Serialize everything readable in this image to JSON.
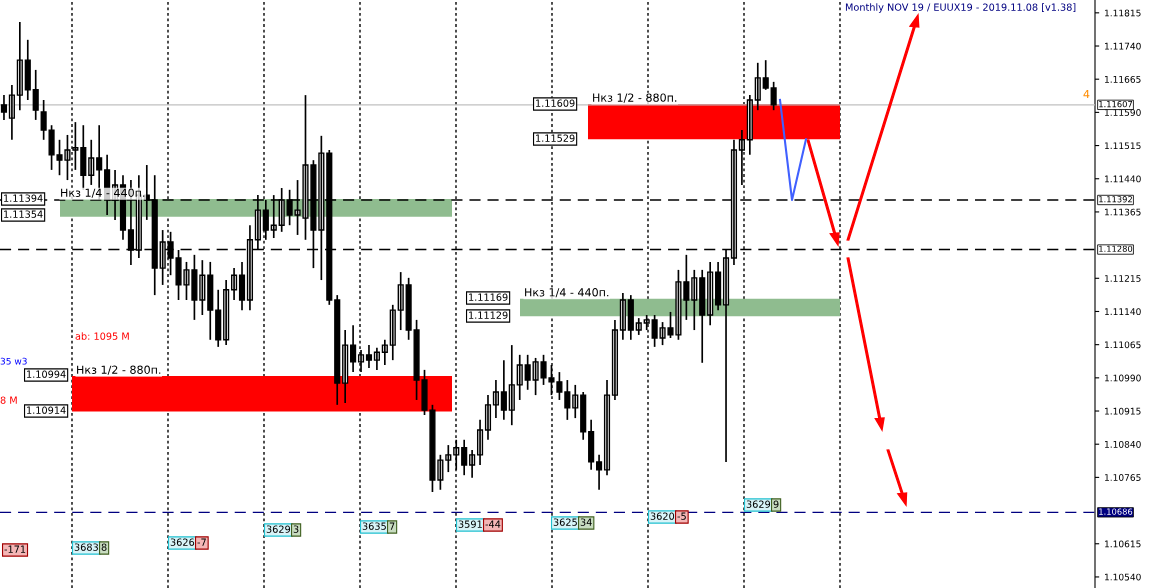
{
  "chart_data": {
    "type": "candlestick",
    "categories": [
      null,
      null,
      null,
      null,
      null,
      null,
      null,
      null,
      null,
      null,
      null,
      null,
      null,
      null,
      null,
      null,
      null,
      null,
      null,
      null,
      null,
      null,
      null,
      null,
      null,
      null,
      null,
      null,
      null,
      null,
      null,
      null,
      null,
      null,
      null,
      null,
      null,
      null,
      null,
      null,
      null,
      null,
      null,
      null,
      null,
      null,
      null,
      null,
      null,
      null,
      null,
      null,
      null,
      null,
      null,
      null,
      null,
      null,
      null,
      null,
      null,
      null,
      null,
      null,
      null,
      null,
      null,
      null,
      null,
      null,
      null,
      null,
      null,
      null,
      null,
      null,
      null,
      null,
      null,
      null,
      null,
      null,
      null,
      null,
      null,
      null,
      null,
      null,
      null,
      null,
      null,
      null,
      null,
      null,
      null,
      null,
      null,
      null,
      null,
      null,
      null,
      null,
      null,
      null,
      null,
      null,
      null,
      null,
      null,
      null,
      null,
      null,
      null,
      null,
      null,
      null,
      null,
      null,
      null,
      null,
      null,
      null,
      null,
      null,
      null,
      null,
      null,
      null,
      null,
      null,
      null,
      null,
      null,
      null,
      null,
      null,
      null,
      null
    ],
    "ohlc": [
      [
        1.11607,
        1.11629,
        1.11573,
        1.11591
      ],
      [
        1.11577,
        1.11652,
        1.11528,
        1.11629
      ],
      [
        1.11629,
        1.11794,
        1.11595,
        1.11708
      ],
      [
        1.11708,
        1.11754,
        1.11618,
        1.11641
      ],
      [
        1.11641,
        1.11686,
        1.11573,
        1.11595
      ],
      [
        1.11591,
        1.11618,
        1.11528,
        1.1155
      ],
      [
        1.1155,
        1.11561,
        1.1146,
        1.11494
      ],
      [
        1.11494,
        1.11528,
        1.11448,
        1.11482
      ],
      [
        1.11482,
        1.11539,
        1.11437,
        1.11505
      ],
      [
        1.11505,
        1.11568,
        1.1146,
        1.1151
      ],
      [
        1.1151,
        1.11561,
        1.11415,
        1.11448
      ],
      [
        1.11448,
        1.11528,
        1.11426,
        1.11487
      ],
      [
        1.11487,
        1.11561,
        1.11392,
        1.1146
      ],
      [
        1.1146,
        1.11494,
        1.11358,
        1.11392
      ],
      [
        1.11392,
        1.1146,
        1.11347,
        1.11426
      ],
      [
        1.11426,
        1.11448,
        1.11302,
        1.11324
      ],
      [
        1.11324,
        1.11437,
        1.11245,
        1.11279
      ],
      [
        1.11279,
        1.11448,
        1.11261,
        1.11403
      ],
      [
        1.11403,
        1.11471,
        1.11347,
        1.11392
      ],
      [
        1.11392,
        1.11448,
        1.11177,
        1.11238
      ],
      [
        1.11238,
        1.11324,
        1.112,
        1.11297
      ],
      [
        1.11297,
        1.1132,
        1.11222,
        1.11261
      ],
      [
        1.11261,
        1.11279,
        1.11166,
        1.112
      ],
      [
        1.112,
        1.11252,
        1.11166,
        1.11234
      ],
      [
        1.11234,
        1.11268,
        1.11121,
        1.11166
      ],
      [
        1.11166,
        1.11256,
        1.11132,
        1.11222
      ],
      [
        1.11222,
        1.11252,
        1.11076,
        1.11143
      ],
      [
        1.11143,
        1.11189,
        1.1106,
        1.11076
      ],
      [
        1.11076,
        1.11211,
        1.11064,
        1.11189
      ],
      [
        1.11189,
        1.11238,
        1.11166,
        1.11222
      ],
      [
        1.11222,
        1.11252,
        1.11143,
        1.11166
      ],
      [
        1.11166,
        1.11335,
        1.11143,
        1.11302
      ],
      [
        1.11302,
        1.11403,
        1.11279,
        1.11369
      ],
      [
        1.11369,
        1.11392,
        1.11302,
        1.11324
      ],
      [
        1.11324,
        1.11403,
        1.11306,
        1.11335
      ],
      [
        1.11335,
        1.11419,
        1.1132,
        1.11392
      ],
      [
        1.11392,
        1.11415,
        1.11335,
        1.11358
      ],
      [
        1.11358,
        1.11437,
        1.11313,
        1.11369
      ],
      [
        1.11351,
        1.11629,
        1.11302,
        1.11471
      ],
      [
        1.11471,
        1.11482,
        1.11238,
        1.11324
      ],
      [
        1.11324,
        1.11537,
        1.11211,
        1.11498
      ],
      [
        1.11498,
        1.11505,
        1.11155,
        1.11166
      ],
      [
        1.11166,
        1.11177,
        1.10929,
        1.10978
      ],
      [
        1.10978,
        1.11098,
        1.10933,
        1.11064
      ],
      [
        1.11064,
        1.11109,
        1.11003,
        1.11026
      ],
      [
        1.11026,
        1.11053,
        1.11003,
        1.11042
      ],
      [
        1.11042,
        1.11064,
        1.11012,
        1.1103
      ],
      [
        1.1103,
        1.11058,
        1.11008,
        1.11048
      ],
      [
        1.11048,
        1.11076,
        1.11019,
        1.11064
      ],
      [
        1.11064,
        1.11155,
        1.1103,
        1.11143
      ],
      [
        1.11143,
        1.11229,
        1.11098,
        1.112
      ],
      [
        1.112,
        1.11216,
        1.11076,
        1.11098
      ],
      [
        1.11098,
        1.11121,
        1.1094,
        1.10985
      ],
      [
        1.10985,
        1.11008,
        1.10906,
        1.10917
      ],
      [
        1.10917,
        1.10929,
        1.10732,
        1.10759
      ],
      [
        1.10759,
        1.10816,
        1.10737,
        1.10804
      ],
      [
        1.10804,
        1.10838,
        1.10777,
        1.10816
      ],
      [
        1.10816,
        1.1085,
        1.10782,
        1.10832
      ],
      [
        1.10832,
        1.1085,
        1.1077,
        1.10793
      ],
      [
        1.10793,
        1.10827,
        1.10764,
        1.10816
      ],
      [
        1.10816,
        1.10895,
        1.10793,
        1.10872
      ],
      [
        1.10872,
        1.10951,
        1.1085,
        1.10929
      ],
      [
        1.10929,
        1.10985,
        1.10899,
        1.10958
      ],
      [
        1.10958,
        1.1103,
        1.10895,
        1.10917
      ],
      [
        1.10917,
        1.11064,
        1.10883,
        1.10974
      ],
      [
        1.10974,
        1.11042,
        1.1094,
        1.11019
      ],
      [
        1.11019,
        1.11042,
        1.10963,
        1.10985
      ],
      [
        1.10985,
        1.11035,
        1.10951,
        1.11026
      ],
      [
        1.11026,
        1.11042,
        1.10974,
        1.1099
      ],
      [
        1.1099,
        1.11019,
        1.10951,
        1.10981
      ],
      [
        1.10981,
        1.11003,
        1.1094,
        1.10958
      ],
      [
        1.10958,
        1.10985,
        1.10895,
        1.10922
      ],
      [
        1.10922,
        1.10974,
        1.10899,
        1.10951
      ],
      [
        1.10951,
        1.10958,
        1.1085,
        1.10868
      ],
      [
        1.10868,
        1.10895,
        1.10782,
        1.108
      ],
      [
        1.108,
        1.10816,
        1.10737,
        1.10782
      ],
      [
        1.10782,
        1.10985,
        1.1077,
        1.10951
      ],
      [
        1.10951,
        1.11121,
        1.1094,
        1.11098
      ],
      [
        1.11098,
        1.11182,
        1.11076,
        1.11166
      ],
      [
        1.11166,
        1.11177,
        1.11076,
        1.11098
      ],
      [
        1.11098,
        1.11125,
        1.11087,
        1.11114
      ],
      [
        1.11114,
        1.11132,
        1.11098,
        1.11121
      ],
      [
        1.11121,
        1.11132,
        1.1106,
        1.1108
      ],
      [
        1.1108,
        1.11116,
        1.11064,
        1.11103
      ],
      [
        1.11103,
        1.11139,
        1.1108,
        1.11087
      ],
      [
        1.11087,
        1.11234,
        1.11076,
        1.11207
      ],
      [
        1.11207,
        1.11268,
        1.11121,
        1.11166
      ],
      [
        1.11166,
        1.11234,
        1.11098,
        1.11216
      ],
      [
        1.11216,
        1.11234,
        1.11024,
        1.11132
      ],
      [
        1.11132,
        1.11252,
        1.11109,
        1.11229
      ],
      [
        1.11229,
        1.11252,
        1.11143,
        1.11155
      ],
      [
        1.11155,
        1.11279,
        1.108,
        1.11261
      ],
      [
        1.11261,
        1.11528,
        1.11245,
        1.11505
      ],
      [
        1.11505,
        1.1155,
        1.11426,
        1.11528
      ],
      [
        1.11528,
        1.11629,
        1.11494,
        1.11618
      ],
      [
        1.11618,
        1.11702,
        1.11595,
        1.11668
      ],
      [
        1.11668,
        1.11708,
        1.11641,
        1.11645
      ],
      [
        1.11645,
        1.11659,
        1.11595,
        1.11607
      ],
      null,
      null,
      null,
      null,
      null,
      null,
      null,
      null,
      null,
      null,
      null,
      null,
      null,
      null,
      null,
      null,
      null,
      null,
      null,
      null,
      null,
      null,
      null,
      null,
      null,
      null,
      null,
      null,
      null,
      null,
      null,
      null,
      null,
      null,
      null,
      null,
      null,
      null,
      null,
      null
    ],
    "ylim": [
      1.10515,
      1.11844
    ],
    "yticks": [
      {
        "value": 1.1054,
        "label": "1.10540"
      },
      1.10615,
      1.10765,
      {
        "value": 1.1084,
        "label": "1.10840"
      },
      1.10915,
      {
        "value": 1.1099,
        "label": "1.10990"
      },
      1.11065,
      {
        "value": 1.1114,
        "label": "1.11140"
      },
      1.11215,
      1.11365,
      {
        "value": 1.1144,
        "label": "1.11440"
      },
      1.11515,
      {
        "value": 1.1159,
        "label": "1.11590"
      },
      1.11665,
      {
        "value": 1.1174,
        "label": "1.11740"
      },
      1.11815
    ],
    "grid": false,
    "legend": false,
    "ref_lines": [
      {
        "axis": "y",
        "value": 1.11607,
        "label": "1.11607",
        "color": "#c0c0c0",
        "line_style": "solid"
      },
      {
        "axis": "y",
        "value": 1.11392,
        "label": "1.11392",
        "color": "#000000",
        "line_style": "dashed"
      },
      {
        "axis": "y",
        "value": 1.1128,
        "label": "1.11280",
        "color": "#000000",
        "line_style": "dashed"
      },
      {
        "axis": "y",
        "value": 1.10686,
        "label": "1.10686",
        "color": "#000080",
        "line_style": "dashed"
      }
    ],
    "bands": [
      {
        "axis": "y",
        "from": 1.11529,
        "to": 1.11609,
        "label": "Нкз 1/2 - 880п.",
        "color": "#ff0000"
      },
      {
        "axis": "y",
        "from": 1.11354,
        "to": 1.11394,
        "label": "Нкз 1/4 - 440п.",
        "color": "#8fbc8f"
      },
      {
        "axis": "y",
        "from": 1.10914,
        "to": 1.10994,
        "label": "Нкз 1/2 - 880п.",
        "color": "#ff0000"
      },
      {
        "axis": "y",
        "from": 1.11129,
        "to": 1.11169,
        "label": "Нкз 1/4 - 440п.",
        "color": "#8fbc8f"
      }
    ],
    "annotations": [
      "Monthly NOV 19 / EUUX19 - 2019.11.08 [v1.38]",
      "ab: 1095 M",
      "4",
      "-171",
      "3683",
      "8",
      "3626",
      "-7",
      "3629",
      "3",
      "3635",
      "7",
      "3591",
      "-44",
      "3625",
      "34",
      "3620",
      "-5",
      "3629",
      "9",
      "35 w3",
      "8 M",
      "1.11609",
      "1.11529",
      "1.11394",
      "1.11354",
      "1.10994",
      "1.10914",
      "1.11169",
      "1.11129"
    ]
  }
}
